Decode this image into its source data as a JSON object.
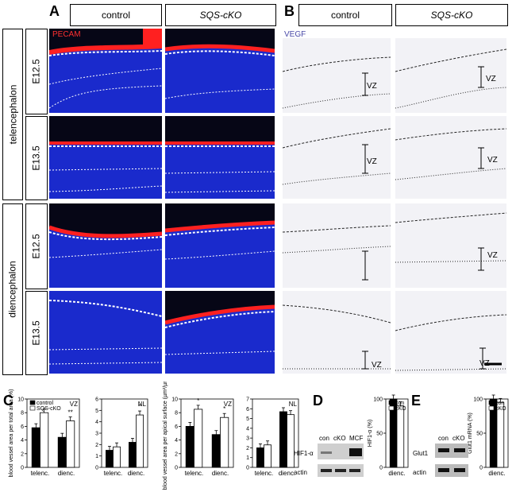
{
  "panels": {
    "A": "A",
    "B": "B",
    "C": "C",
    "D": "D",
    "E": "E"
  },
  "col_headers": {
    "control": "control",
    "sqs_ko": "SQS-cKO"
  },
  "stains": {
    "pecam": "PECAM",
    "vegf": "VEGF"
  },
  "regions": {
    "telencephalon": "telencephalon",
    "diencephalon": "diencephalon"
  },
  "stages": {
    "e125": "E12.5",
    "e135": "E13.5"
  },
  "vz_label": "VZ",
  "chart_data": [
    {
      "type": "bar",
      "title": "",
      "region_label": "VZ",
      "ylabel": "blood vessel area per total area (%)",
      "ylim": [
        0,
        10
      ],
      "yticks": [
        0,
        2,
        4,
        6,
        8,
        10
      ],
      "categories": [
        "telenc.",
        "dienc."
      ],
      "series": [
        {
          "name": "control",
          "values": [
            5.8,
            4.4
          ]
        },
        {
          "name": "SQS-cKO",
          "values": [
            8.0,
            6.8
          ]
        }
      ],
      "legend": [
        "control",
        "SQS-cKO"
      ],
      "annotations": [
        "**"
      ]
    },
    {
      "type": "bar",
      "title": "",
      "region_label": "NL",
      "ylabel": "",
      "ylim": [
        0,
        6
      ],
      "yticks": [
        0,
        1,
        2,
        3,
        4,
        5,
        6
      ],
      "categories": [
        "telenc.",
        "dienc."
      ],
      "series": [
        {
          "name": "control",
          "values": [
            1.5,
            2.2
          ]
        },
        {
          "name": "SQS-cKO",
          "values": [
            1.8,
            4.6
          ]
        }
      ],
      "annotations": [
        "*"
      ]
    },
    {
      "type": "bar",
      "title": "",
      "region_label": "VZ",
      "ylabel": "blood vessel area per apical surface (µm²/µm)",
      "ylim": [
        0,
        10
      ],
      "yticks": [
        0,
        2,
        4,
        6,
        8,
        10
      ],
      "categories": [
        "telenc.",
        "dienc."
      ],
      "series": [
        {
          "name": "control",
          "values": [
            6.0,
            4.8
          ]
        },
        {
          "name": "SQS-cKO",
          "values": [
            8.5,
            7.3
          ]
        }
      ],
      "annotations": [
        "*",
        "*"
      ]
    },
    {
      "type": "bar",
      "title": "",
      "region_label": "NL",
      "ylabel": "",
      "ylim": [
        0,
        7
      ],
      "yticks": [
        0,
        1,
        2,
        3,
        4,
        5,
        6,
        7
      ],
      "categories": [
        "telenc.",
        "dienc."
      ],
      "series": [
        {
          "name": "control",
          "values": [
            2.0,
            5.7
          ]
        },
        {
          "name": "SQS-cKO",
          "values": [
            2.3,
            5.4
          ]
        }
      ]
    },
    {
      "type": "bar",
      "title": "",
      "ylabel": "HIF1-α (%)",
      "ylim": [
        0,
        100
      ],
      "yticks": [
        0,
        50,
        100
      ],
      "categories": [
        "dienc."
      ],
      "series": [
        {
          "name": "con",
          "values": [
            100
          ]
        },
        {
          "name": "cKO",
          "values": [
            90
          ]
        }
      ],
      "legend": [
        "con",
        "cKO"
      ]
    },
    {
      "type": "bar",
      "title": "",
      "ylabel": "Glut1 mRNA (%)",
      "ylim": [
        0,
        100
      ],
      "yticks": [
        0,
        50,
        100
      ],
      "categories": [
        "dienc."
      ],
      "series": [
        {
          "name": "con",
          "values": [
            100
          ]
        },
        {
          "name": "cKO",
          "values": [
            95
          ]
        }
      ],
      "legend": [
        "con",
        "cKO"
      ]
    }
  ],
  "blots": {
    "d_lanes": [
      "con",
      "cKO",
      "MCF"
    ],
    "d_rows": [
      "HIF1-α",
      "actin"
    ],
    "e_lanes": [
      "con",
      "cKO"
    ],
    "e_rows": [
      "Glut1",
      "actin"
    ]
  },
  "colors": {
    "pecam": "#ff2020",
    "dapi": "#1a2acc",
    "vegf": "#4a4aa8",
    "bar_control": "#000000",
    "bar_ko": "#ffffff"
  }
}
